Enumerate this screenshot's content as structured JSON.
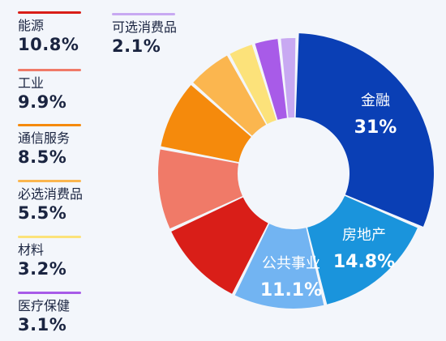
{
  "chart_data": {
    "type": "pie",
    "donut": true,
    "title": "",
    "categories": [
      "金融",
      "房地产",
      "公共事业",
      "能源",
      "工业",
      "通信服务",
      "必选消费品",
      "材料",
      "医疗保健",
      "可选消费品"
    ],
    "values": [
      31,
      14.8,
      11.1,
      10.8,
      9.9,
      8.5,
      5.5,
      3.2,
      3.1,
      2.1
    ],
    "labels": [
      "31%",
      "14.8%",
      "11.1%",
      "10.8%",
      "9.9%",
      "8.5%",
      "5.5%",
      "3.2%",
      "3.1%",
      "2.1%"
    ],
    "colors": [
      "#0a3fb5",
      "#1a94dc",
      "#72b4f2",
      "#d91e18",
      "#f07a68",
      "#f58a0c",
      "#fbb64f",
      "#fce27a",
      "#a85be8",
      "#c8a9f2"
    ],
    "legend_position": "left"
  }
}
